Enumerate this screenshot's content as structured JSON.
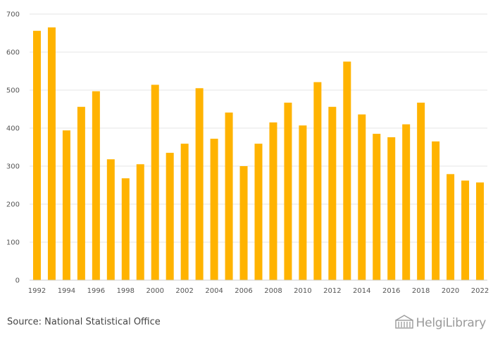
{
  "chart_data": {
    "type": "bar",
    "categories": [
      "1992",
      "1993",
      "1994",
      "1995",
      "1996",
      "1997",
      "1998",
      "1999",
      "2000",
      "2001",
      "2002",
      "2003",
      "2004",
      "2005",
      "2006",
      "2007",
      "2008",
      "2009",
      "2010",
      "2011",
      "2012",
      "2013",
      "2014",
      "2015",
      "2016",
      "2017",
      "2018",
      "2019",
      "2020",
      "2021",
      "2022"
    ],
    "values": [
      656,
      665,
      394,
      456,
      497,
      318,
      268,
      305,
      514,
      335,
      359,
      505,
      372,
      441,
      300,
      359,
      415,
      467,
      407,
      521,
      456,
      575,
      436,
      385,
      376,
      410,
      467,
      365,
      279,
      262,
      257
    ],
    "x_tick_labels": [
      "1992",
      "1994",
      "1996",
      "1998",
      "2000",
      "2002",
      "2004",
      "2006",
      "2008",
      "2010",
      "2012",
      "2014",
      "2016",
      "2018",
      "2020",
      "2022"
    ],
    "y_ticks": [
      0,
      100,
      200,
      300,
      400,
      500,
      600,
      700
    ],
    "ylim": [
      0,
      700
    ],
    "grid": true,
    "bar_color": "#FFB300"
  },
  "footer": {
    "source": "Source: National Statistical Office",
    "logo_text": "HelgiLibrary",
    "logo_icon": "building-icon"
  }
}
